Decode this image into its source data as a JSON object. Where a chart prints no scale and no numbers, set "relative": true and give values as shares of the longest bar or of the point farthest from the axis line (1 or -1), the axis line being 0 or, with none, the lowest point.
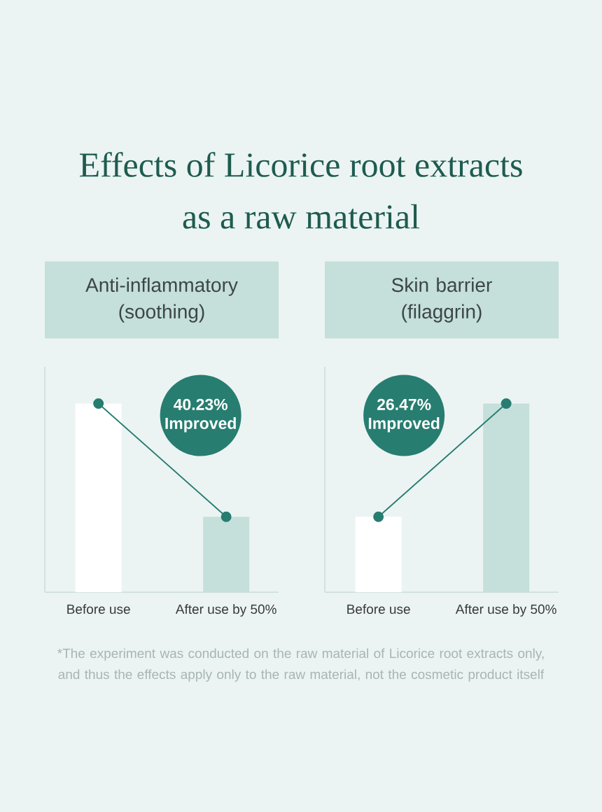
{
  "chart_data": [
    {
      "type": "bar",
      "title": "Effects of Licorice root extracts as a raw material",
      "subtitle": "Anti-inflammatory (soothing)",
      "categories": [
        "Before use",
        "After use by 50%"
      ],
      "relative": true,
      "series": [
        {
          "type": "bar",
          "colors": [
            "#ffffff",
            "#c5dfdb"
          ],
          "values": [
            1,
            0.4
          ]
        },
        {
          "type": "line",
          "color": "#277d70",
          "marker": "circle",
          "values": [
            1,
            0.4
          ]
        }
      ],
      "annotations": [
        "40.23% Improved"
      ]
    },
    {
      "type": "bar",
      "subtitle": "Skin barrier (filaggrin)",
      "categories": [
        "Before use",
        "After use by 50%"
      ],
      "relative": true,
      "series": [
        {
          "type": "bar",
          "colors": [
            "#ffffff",
            "#c5dfdb"
          ],
          "values": [
            0.4,
            1
          ]
        },
        {
          "type": "line",
          "color": "#277d70",
          "marker": "circle",
          "values": [
            0.4,
            1
          ]
        }
      ],
      "annotations": [
        "26.47% Improved",
        "*The experiment was conducted on the raw material of Licorice root extracts only, and thus the effects apply only to the raw material, not the cosmetic product itself"
      ]
    }
  ]
}
